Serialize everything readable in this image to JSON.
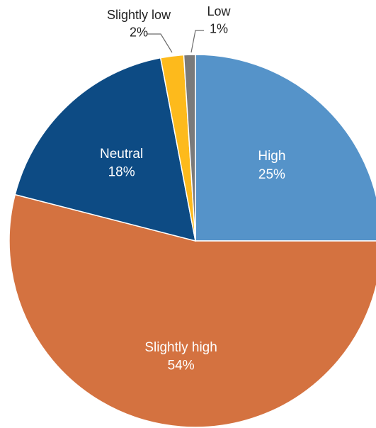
{
  "chart_data": {
    "type": "pie",
    "title": "",
    "legend": "none",
    "start_angle_deg": 0,
    "direction": "clockwise",
    "slices": [
      {
        "name": "High",
        "value": 25,
        "label": "25%",
        "color": "#5593C9",
        "label_position": "inside"
      },
      {
        "name": "Slightly high",
        "value": 54,
        "label": "54%",
        "color": "#D47240",
        "label_position": "inside"
      },
      {
        "name": "Neutral",
        "value": 18,
        "label": "18%",
        "color": "#0D4B84",
        "label_position": "inside"
      },
      {
        "name": "Slightly low",
        "value": 2,
        "label": "2%",
        "color": "#FDBA1C",
        "label_position": "outside"
      },
      {
        "name": "Low",
        "value": 1,
        "label": "1%",
        "color": "#7A7A7A",
        "label_position": "outside"
      }
    ]
  }
}
